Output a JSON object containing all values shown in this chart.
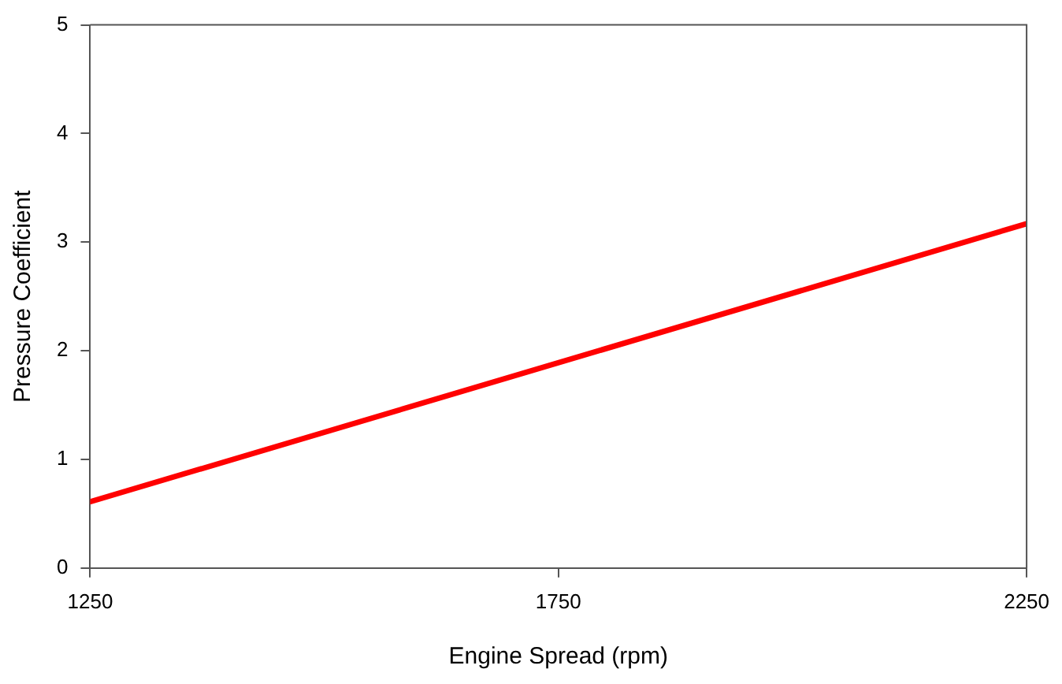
{
  "chart_data": {
    "type": "line",
    "xlabel": "Engine Spread (rpm)",
    "ylabel": "Pressure Coefficient",
    "x": [
      1250,
      2250
    ],
    "series": [
      {
        "color": "#ff0000",
        "values": [
          0.61,
          3.17
        ]
      }
    ],
    "xlim": [
      1250,
      2250
    ],
    "xticks": [
      1250,
      1750,
      2250
    ],
    "ylim": [
      0,
      5
    ],
    "yticks": [
      0,
      1,
      2,
      3,
      4,
      5
    ],
    "grid": false,
    "legend": false,
    "marker": "none",
    "line_style": "solid"
  }
}
